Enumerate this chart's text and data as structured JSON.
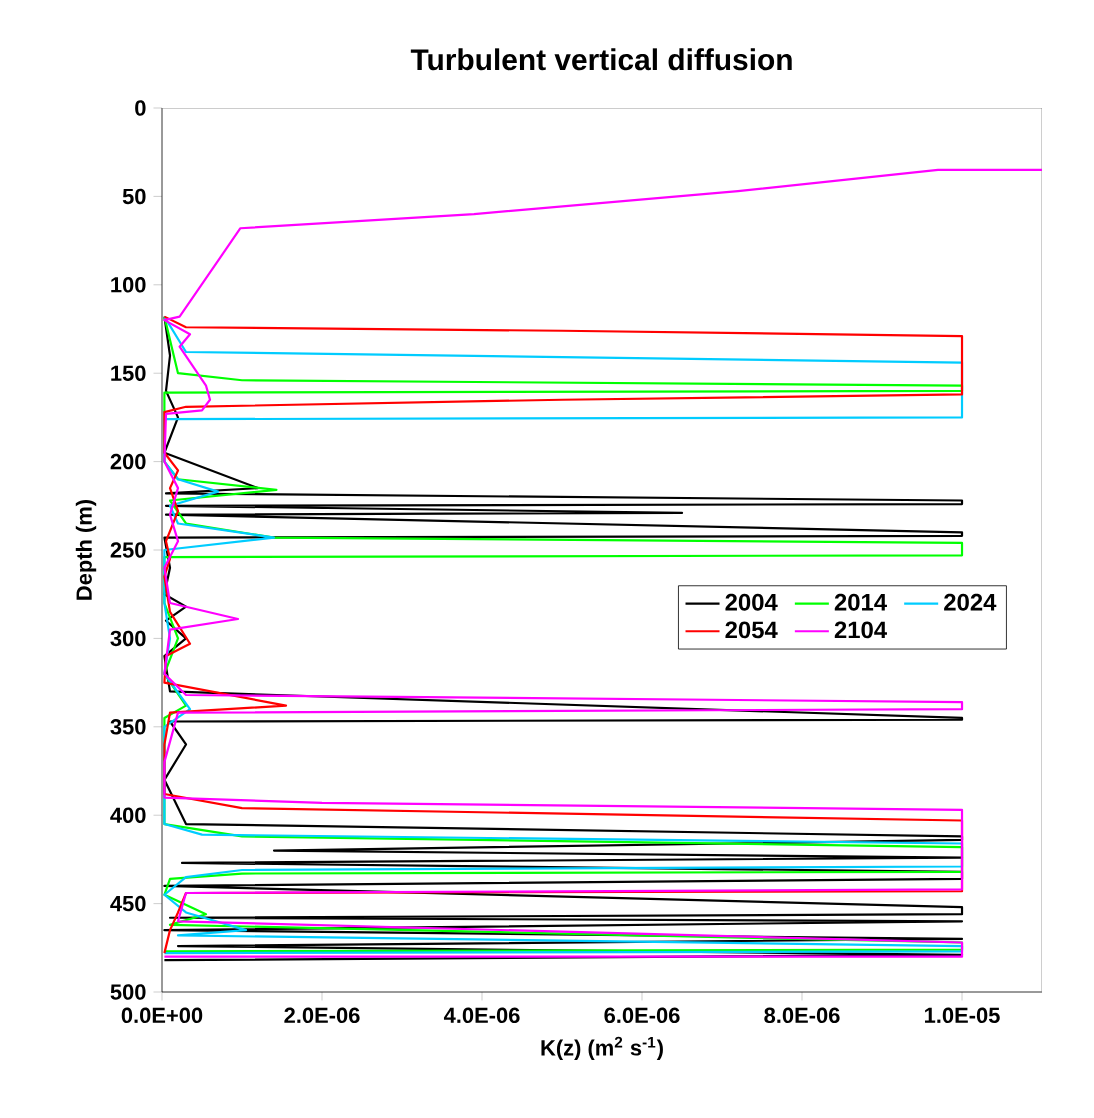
{
  "chart_data": {
    "type": "line",
    "title": "Turbulent vertical diffusion",
    "xlabel": "K(z) (m$^{2}$ s$^{-1}$)",
    "ylabel": "Depth (m)",
    "xlim": [
      0,
      1.1e-05
    ],
    "ylim": [
      500,
      0
    ],
    "xticks": [
      {
        "value": 0,
        "label": "0.0E+00"
      },
      {
        "value": 2e-06,
        "label": "2.0E-06"
      },
      {
        "value": 4e-06,
        "label": "4.0E-06"
      },
      {
        "value": 6e-06,
        "label": "6.0E-06"
      },
      {
        "value": 8e-06,
        "label": "8.0E-06"
      },
      {
        "value": 1e-05,
        "label": "1.0E-05"
      }
    ],
    "yticks": [
      0,
      50,
      100,
      150,
      200,
      250,
      300,
      350,
      400,
      450,
      500
    ],
    "legend": "right",
    "grid": false,
    "series": [
      {
        "name": "2004",
        "color": "#000000",
        "x": [
          3e-08,
          1e-07,
          5e-08,
          2e-07,
          3e-08,
          1.2e-06,
          5e-08,
          1e-05,
          1e-05,
          5e-08,
          6.5e-06,
          5e-08,
          1e-05,
          1e-05,
          3e-08,
          1e-07,
          3e-08,
          3e-07,
          5e-08,
          3e-07,
          3e-08,
          1e-07,
          1e-05,
          1e-05,
          1e-07,
          3e-07,
          3e-08,
          3e-07,
          1e-05,
          1e-05,
          1.4e-06,
          1e-05,
          2.5e-07,
          1e-05,
          1e-05,
          3e-08,
          1e-05,
          1e-05,
          1e-07,
          1e-05,
          3e-08,
          1e-05,
          2e-07,
          1e-05,
          3e-08
        ],
        "values": [
          118,
          140,
          160,
          175,
          195,
          215,
          218,
          222,
          224,
          225,
          229,
          230,
          240,
          242,
          243,
          260,
          275,
          282,
          290,
          300,
          310,
          330,
          345,
          346,
          347,
          360,
          380,
          405,
          412,
          414,
          420,
          424,
          427,
          432,
          436,
          440,
          452,
          456,
          458,
          460,
          465,
          470,
          474,
          479,
          482
        ]
      },
      {
        "name": "2014",
        "color": "#00ff00",
        "x": [
          3e-08,
          2e-07,
          1e-06,
          1e-05,
          1e-05,
          3e-08,
          3e-08,
          2e-07,
          1.43e-06,
          1e-07,
          3e-07,
          1.4e-06,
          1e-05,
          1e-05,
          3e-08,
          3e-08,
          2e-07,
          3e-08,
          3e-07,
          3e-08,
          3e-08,
          1e-06,
          1e-05,
          1e-05,
          1e-06,
          1e-07,
          3e-08,
          5.5e-07,
          1e-07,
          1e-05,
          1e-05,
          3e-08
        ],
        "values": [
          118,
          150,
          154,
          157,
          160,
          161,
          200,
          210,
          216,
          222,
          235,
          243,
          246,
          253,
          254,
          280,
          300,
          320,
          338,
          345,
          405,
          412,
          418,
          432,
          433,
          436,
          445,
          456,
          462,
          472,
          476,
          477
        ]
      },
      {
        "name": "2024",
        "color": "#00ccff",
        "x": [
          3e-08,
          3e-07,
          1e-05,
          1e-05,
          3e-08,
          3e-08,
          2e-07,
          7e-07,
          1e-07,
          2e-07,
          1.4e-06,
          3e-08,
          3e-08,
          1e-07,
          3e-08,
          3.5e-07,
          3e-08,
          3e-08,
          5e-07,
          1e-05,
          1e-05,
          1e-06,
          3e-07,
          3e-08,
          3e-07,
          1.05e-06,
          2e-07,
          1e-05,
          1e-05,
          3e-08
        ],
        "values": [
          118,
          138,
          144,
          175,
          176,
          200,
          210,
          217,
          225,
          235,
          243,
          250,
          280,
          300,
          320,
          340,
          350,
          405,
          411,
          416,
          429,
          431,
          435,
          445,
          455,
          465,
          468,
          474,
          477,
          478
        ]
      },
      {
        "name": "2054",
        "color": "#ff0000",
        "x": [
          3e-08,
          3e-07,
          5e-06,
          1e-05,
          1e-05,
          5e-06,
          3e-07,
          3e-08,
          3e-08,
          2e-07,
          1e-07,
          2e-07,
          5e-08,
          1e-07,
          3e-08,
          1e-07,
          3.5e-07,
          5e-08,
          3e-08,
          1.55e-06,
          1e-07,
          3e-08,
          3e-08,
          1e-06,
          1e-05,
          1e-05,
          3e-07,
          2e-07,
          1e-07,
          3e-08
        ],
        "values": [
          118,
          124,
          126,
          129,
          162,
          165,
          169,
          172,
          195,
          205,
          215,
          228,
          245,
          255,
          265,
          285,
          303,
          310,
          325,
          338,
          342,
          360,
          388,
          396,
          403,
          443,
          444,
          455,
          465,
          478
        ]
      },
      {
        "name": "2104",
        "color": "#ff00ff",
        "x": [
          1.1e-05,
          9.7e-06,
          7.2e-06,
          3.9e-06,
          9.8e-07,
          2.2e-07,
          3e-08,
          3.5e-07,
          2.2e-07,
          5.5e-07,
          6e-07,
          5e-07,
          5e-08,
          3e-08,
          2e-07,
          1e-07,
          2e-07,
          3e-08,
          1e-07,
          9.5e-07,
          1e-07,
          3e-08,
          3e-07,
          1e-05,
          1e-05,
          2e-07,
          3e-08,
          3e-08,
          2e-06,
          1e-05,
          1e-05,
          3e-07,
          2e-07,
          1e-05,
          1e-05,
          3e-08
        ],
        "values": [
          35,
          35,
          47,
          60,
          68,
          118,
          120,
          128,
          135,
          157,
          165,
          171,
          173,
          200,
          215,
          230,
          245,
          260,
          280,
          289,
          295,
          320,
          332,
          336,
          340,
          342,
          370,
          390,
          393,
          397,
          442,
          444,
          460,
          472,
          480,
          480
        ]
      }
    ]
  }
}
